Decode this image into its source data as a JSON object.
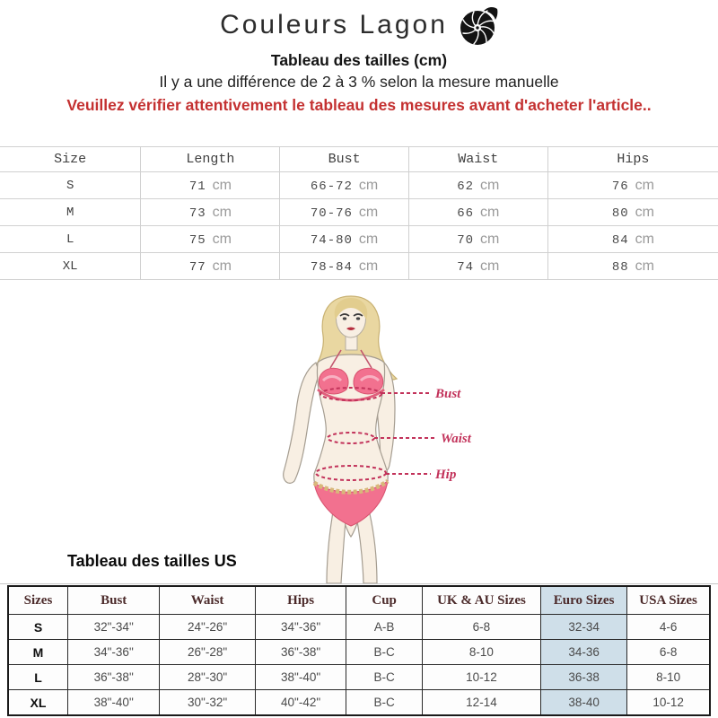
{
  "brand": {
    "name": "Couleurs Lagon",
    "icon": "nautilus-shell-icon"
  },
  "intro": {
    "title": "Tableau des tailles (cm)",
    "subtitle": "Il y a une différence de 2 à 3 % selon la mesure manuelle",
    "warning": "Veuillez vérifier attentivement le tableau des mesures avant d'acheter l'article.."
  },
  "colors": {
    "warning_red": "#c43131",
    "euro_highlight": "#cfdfe9",
    "figure_label_pink": "#c2325a",
    "us_header_text": "#4c2b2b"
  },
  "cm_table": {
    "headers": [
      "Size",
      "Length",
      "Bust",
      "Waist",
      "Hips"
    ],
    "unit": "cm",
    "rows": [
      {
        "size": "S",
        "length": "71",
        "bust": "66-72",
        "waist": "62",
        "hips": "76"
      },
      {
        "size": "M",
        "length": "73",
        "bust": "70-76",
        "waist": "66",
        "hips": "80"
      },
      {
        "size": "L",
        "length": "75",
        "bust": "74-80",
        "waist": "70",
        "hips": "84"
      },
      {
        "size": "XL",
        "length": "77",
        "bust": "78-84",
        "waist": "74",
        "hips": "88"
      }
    ]
  },
  "figure": {
    "labels": {
      "bust": "Bust",
      "waist": "Waist",
      "hip": "Hip"
    }
  },
  "us_section": {
    "heading": "Tableau des tailles US",
    "table": {
      "headers": [
        "Sizes",
        "Bust",
        "Waist",
        "Hips",
        "Cup",
        "UK & AU Sizes",
        "Euro Sizes",
        "USA Sizes"
      ],
      "highlight_column": "Euro Sizes",
      "rows": [
        [
          "S",
          "32\"-34\"",
          "24\"-26\"",
          "34\"-36\"",
          "A-B",
          "6-8",
          "32-34",
          "4-6"
        ],
        [
          "M",
          "34\"-36\"",
          "26\"-28\"",
          "36\"-38\"",
          "B-C",
          "8-10",
          "34-36",
          "6-8"
        ],
        [
          "L",
          "36\"-38\"",
          "28\"-30\"",
          "38\"-40\"",
          "B-C",
          "10-12",
          "36-38",
          "8-10"
        ],
        [
          "XL",
          "38\"-40\"",
          "30\"-32\"",
          "40\"-42\"",
          "B-C",
          "12-14",
          "38-40",
          "10-12"
        ]
      ]
    }
  }
}
